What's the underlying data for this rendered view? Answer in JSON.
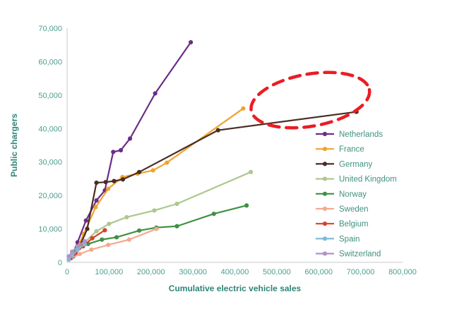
{
  "chart_data": {
    "type": "line",
    "title": "",
    "xlabel": "Cumulative electric vehicle sales",
    "ylabel": "Public chargers",
    "xlim": [
      0,
      800000
    ],
    "ylim": [
      0,
      70000
    ],
    "xticks": [
      0,
      100000,
      200000,
      300000,
      400000,
      500000,
      600000,
      700000,
      800000
    ],
    "yticks": [
      0,
      10000,
      20000,
      30000,
      40000,
      50000,
      60000,
      70000
    ],
    "grid": false,
    "legend_position": "inside-right",
    "colors": {
      "tick_text": "#4d9e90",
      "axis_title": "#2e8576",
      "legend_text": "#41917f",
      "axis_line": "#c8c8c8",
      "annotation": "#ec1c24",
      "background": "#ffffff"
    },
    "series": [
      {
        "name": "Netherlands",
        "color": "#6b2d87",
        "points": [
          [
            10000,
            1500
          ],
          [
            25000,
            6000
          ],
          [
            45000,
            12500
          ],
          [
            70000,
            18500
          ],
          [
            90000,
            21500
          ],
          [
            110000,
            33000
          ],
          [
            128000,
            33500
          ],
          [
            150000,
            37000
          ],
          [
            210000,
            50500
          ],
          [
            295000,
            65800
          ]
        ]
      },
      {
        "name": "France",
        "color": "#f0a22e",
        "points": [
          [
            15000,
            2000
          ],
          [
            40000,
            8500
          ],
          [
            68000,
            16500
          ],
          [
            98000,
            22000
          ],
          [
            132000,
            25500
          ],
          [
            168000,
            26500
          ],
          [
            205000,
            27500
          ],
          [
            238000,
            29800
          ],
          [
            420000,
            46000
          ]
        ]
      },
      {
        "name": "Germany",
        "color": "#4a2e24",
        "points": [
          [
            15000,
            1800
          ],
          [
            28000,
            4200
          ],
          [
            48000,
            10000
          ],
          [
            70000,
            23800
          ],
          [
            92000,
            24000
          ],
          [
            112000,
            24300
          ],
          [
            133000,
            24800
          ],
          [
            172000,
            27000
          ],
          [
            360000,
            39500
          ],
          [
            690000,
            45000
          ]
        ]
      },
      {
        "name": "United Kingdom",
        "color": "#abc88e",
        "points": [
          [
            18000,
            3000
          ],
          [
            42000,
            6000
          ],
          [
            70000,
            9300
          ],
          [
            100000,
            11500
          ],
          [
            142000,
            13500
          ],
          [
            208000,
            15500
          ],
          [
            262000,
            17500
          ],
          [
            438000,
            27000
          ]
        ]
      },
      {
        "name": "Norway",
        "color": "#3f9142",
        "points": [
          [
            20000,
            3500
          ],
          [
            50000,
            5500
          ],
          [
            83000,
            6800
          ],
          [
            118000,
            7500
          ],
          [
            172000,
            9500
          ],
          [
            213000,
            10400
          ],
          [
            262000,
            10800
          ],
          [
            350000,
            14500
          ],
          [
            428000,
            17000
          ]
        ]
      },
      {
        "name": "Sweden",
        "color": "#f5a98f",
        "points": [
          [
            10000,
            1200
          ],
          [
            30000,
            2500
          ],
          [
            58000,
            3800
          ],
          [
            98000,
            5200
          ],
          [
            148000,
            6800
          ],
          [
            213000,
            10000
          ]
        ]
      },
      {
        "name": "Belgium",
        "color": "#d9402c",
        "points": [
          [
            8000,
            1200
          ],
          [
            20000,
            2800
          ],
          [
            38000,
            4800
          ],
          [
            60000,
            7200
          ],
          [
            90000,
            9600
          ]
        ]
      },
      {
        "name": "Spain",
        "color": "#7fb9d8",
        "points": [
          [
            4000,
            800
          ],
          [
            12000,
            2000
          ],
          [
            25000,
            3800
          ],
          [
            42000,
            5400
          ]
        ]
      },
      {
        "name": "Switzerland",
        "color": "#b092c7",
        "points": [
          [
            4000,
            1800
          ],
          [
            12000,
            3200
          ],
          [
            25000,
            4800
          ],
          [
            42000,
            6300
          ]
        ]
      }
    ],
    "annotation": {
      "shape": "dashed-ellipse",
      "cx": 580000,
      "cy": 48500,
      "rx": 143000,
      "ry": 7800,
      "rotation_deg": -10
    }
  }
}
